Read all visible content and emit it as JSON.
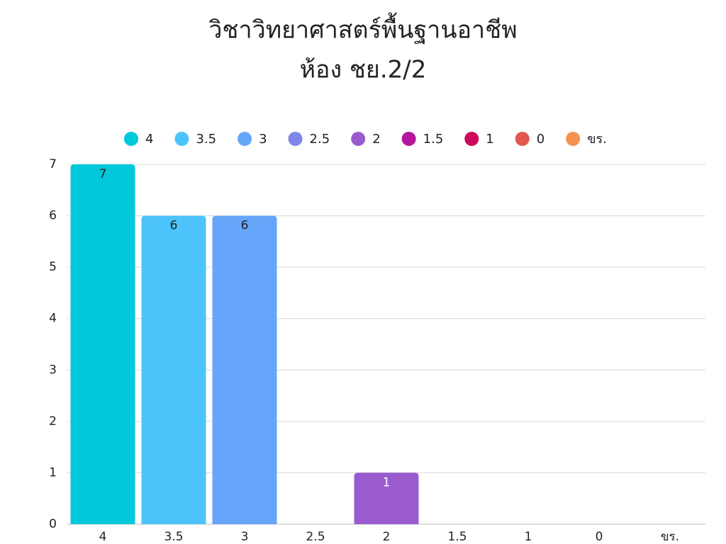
{
  "chart_data": {
    "type": "bar",
    "title": "วิชาวิทยาศาสตร์พื้นฐานอาชีพ",
    "subtitle": "ห้อง ชย.2/2",
    "categories": [
      "4",
      "3.5",
      "3",
      "2.5",
      "2",
      "1.5",
      "1",
      "0",
      "ขร."
    ],
    "values": [
      7,
      6,
      6,
      0,
      1,
      0,
      0,
      0,
      0
    ],
    "colors": [
      "#00c8db",
      "#4cc4fb",
      "#66a6fa",
      "#7e87e8",
      "#9a5bcf",
      "#b5179e",
      "#cc0a5b",
      "#e0584e",
      "#f4934f"
    ],
    "ylim": [
      0,
      7
    ],
    "yticks": [
      0,
      1,
      2,
      3,
      4,
      5,
      6,
      7
    ],
    "grid": true,
    "legend": "top"
  }
}
